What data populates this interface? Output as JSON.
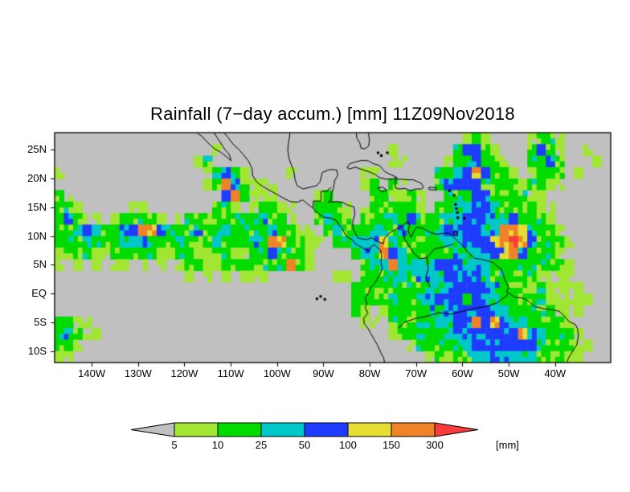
{
  "title": "Rainfall (7−day accum.) [mm] 11Z09Nov2018",
  "chart_data": {
    "type": "heatmap",
    "title": "Rainfall (7−day accum.) [mm] 11Z09Nov2018",
    "background": "#c0c0c0",
    "lon_range": [
      -148,
      -28
    ],
    "lat_range": [
      -12,
      28
    ],
    "x_axis": {
      "lons": [
        -140,
        -130,
        -120,
        -110,
        -100,
        -90,
        -80,
        -70,
        -60,
        -50,
        -40
      ],
      "labels": [
        "140W",
        "130W",
        "120W",
        "110W",
        "100W",
        "90W",
        "80W",
        "70W",
        "60W",
        "50W",
        "40W"
      ]
    },
    "y_axis": {
      "lats": [
        25,
        20,
        15,
        10,
        5,
        0,
        -5,
        -10
      ],
      "labels": [
        "25N",
        "20N",
        "15N",
        "10N",
        "5N",
        "EQ",
        "5S",
        "10S"
      ]
    },
    "colorbar": {
      "levels": [
        "5",
        "10",
        "25",
        "50",
        "100",
        "150",
        "300"
      ],
      "unit": "[mm]",
      "under_color": "#c0c0c0",
      "over_color": "#fa3c3c",
      "segment_colors": [
        "#a0e632",
        "#00dc00",
        "#00c8c8",
        "#1e3cff",
        "#e6dc32",
        "#f08228"
      ]
    },
    "grid": {
      "cols": 60,
      "rows": 20,
      "palette": [
        "#c0c0c0",
        "#a0e632",
        "#00dc00",
        "#00c8c8",
        "#1e3cff",
        "#e6dc32",
        "#f08228",
        "#fa3c3c"
      ],
      "codes": [
        "000000000000000000000000000000000000000000001210000122100000",
        "000000000000000001000000000000000000100000024421000242100100",
        "000000000000000120000000000000000000110000122422100224200010",
        "100000000000000012421000010000000110000002244642210122201000",
        "000000000000000012642111000000000120210002444422221221100000",
        "210000000000000000462111000012000022112100222442222110000000",
        "221000001100000002210122110022210122222102233443222211000000",
        "232110122221012222222232210023220222324222334443342221000000",
        "223432244664322322322223221102322233232223444434665322100000",
        "222322233432232223222326622110223336322222334445676422210000",
        "122211222221122112211224222100002336432222233344564222100000",
        "101010110101012211222222262100000233633334443332222222210000",
        "000000000000001010101110000000110222232333444432222211110000",
        "000000000000000000000000000000002222222233344443222121111000",
        "000000000000000000000000000000002222322334443433222221111100",
        "000000000000000000000000000000002101222233444443322222111000",
        "221100000000000000000000000000000110222223344646433222210000",
        "232110000000000000000000000000000000122222334444446432221000",
        "221000000000000000000000000000000000001222233444444432221100",
        "110000000000000000000000000000000000000012222334333322211000"
      ]
    }
  }
}
